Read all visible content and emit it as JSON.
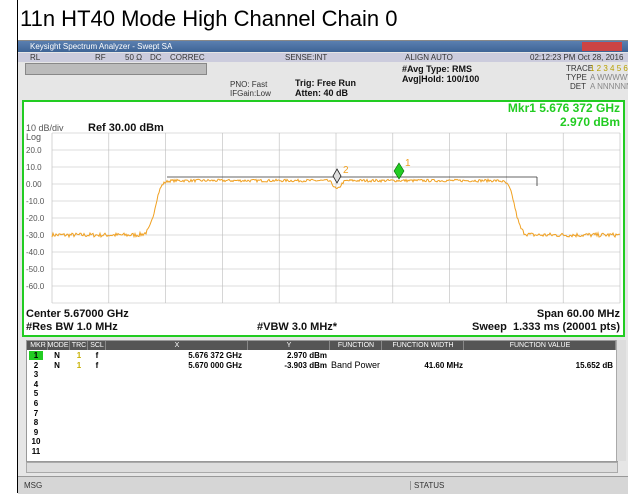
{
  "title": "11n HT40 Mode High Channel Chain 0",
  "window": {
    "title": "Keysight Spectrum Analyzer - Swept SA"
  },
  "toolbar": {
    "rl": "RL",
    "rf": "RF",
    "imp": "50 Ω",
    "dc": "DC",
    "correc": "CORREC",
    "sense": "SENSE:INT",
    "align": "ALIGN AUTO",
    "time": "02:12:23 PM Oct 28, 2016"
  },
  "settings": {
    "pno": "PNO: Fast",
    "ifgain": "IFGain:Low",
    "trig": "Trig: Free Run",
    "atten": "Atten: 40 dB",
    "avg_type": "#Avg Type: RMS",
    "avg_hold": "Avg|Hold: 100/100",
    "trace_label": "TRACE",
    "trace": "1 2 3 4 5 6",
    "type_label": "TYPE",
    "type": "A WWWWWW",
    "det_label": "DET",
    "det": "A NNNNNN"
  },
  "display": {
    "marker": "Mkr1 5.676 372 GHz",
    "marker_value": "2.970 dBm",
    "scale": "10 dB/div",
    "log": "Log",
    "ref": "Ref 30.00 dBm",
    "ylabels": [
      "20.0",
      "10.0",
      "0.00",
      "-10.0",
      "-20.0",
      "-30.0",
      "-40.0",
      "-50.0",
      "-60.0"
    ],
    "marker_labels": [
      "1",
      "2"
    ],
    "center": "Center 5.67000 GHz",
    "span": "Span 60.00 MHz",
    "rbw": "#Res BW 1.0 MHz",
    "vbw": "#VBW 3.0 MHz*",
    "sweep": "Sweep  1.333 ms (20001 pts)"
  },
  "table": {
    "columns": [
      "MKR",
      "MODE",
      "TRC",
      "SCL",
      "X",
      "Y",
      "FUNCTION",
      "FUNCTION WIDTH",
      "FUNCTION VALUE"
    ],
    "rows": [
      {
        "mkr": "1",
        "mode": "N",
        "trc": "1",
        "scl": "f",
        "x": "5.676 372 GHz",
        "y": "2.970 dBm"
      },
      {
        "mkr": "2",
        "mode": "N",
        "trc": "1",
        "scl": "f",
        "x": "5.670 000 GHz",
        "y": "-3.903 dBm",
        "function": "Band Power",
        "width": "41.60 MHz",
        "value": "15.652 dB"
      },
      {
        "mkr": "3"
      },
      {
        "mkr": "4"
      },
      {
        "mkr": "5"
      },
      {
        "mkr": "6"
      },
      {
        "mkr": "7"
      },
      {
        "mkr": "8"
      },
      {
        "mkr": "9"
      },
      {
        "mkr": "10"
      },
      {
        "mkr": "11"
      }
    ]
  },
  "status": {
    "msg": "MSG",
    "status": "STATUS"
  }
}
